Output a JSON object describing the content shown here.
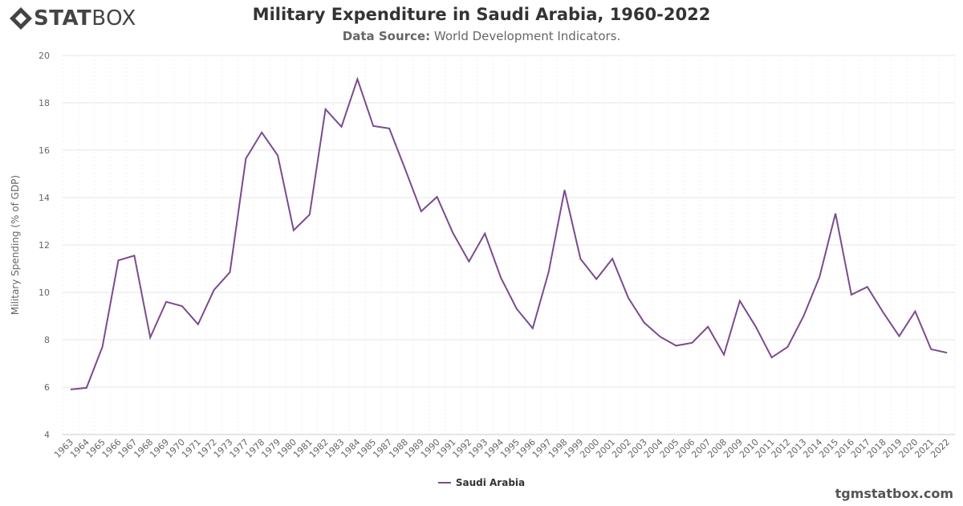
{
  "logo": {
    "text_bold": "STAT",
    "text_light": "BOX"
  },
  "header": {
    "title": "Military Expenditure in Saudi Arabia, 1960-2022",
    "source_label": "Data Source:",
    "source_value": "World Development Indicators."
  },
  "watermark": "tgmstatbox.com",
  "colors": {
    "series": "#7b4b8e",
    "grid": "#e6e6e6",
    "axis_text": "#666666"
  },
  "chart_data": {
    "type": "line",
    "title": "Military Expenditure in Saudi Arabia, 1960-2022",
    "xlabel": "",
    "ylabel": "Military Spending (% of GDP)",
    "ylim": [
      4,
      20
    ],
    "yticks": [
      4,
      6,
      8,
      10,
      12,
      14,
      16,
      18,
      20
    ],
    "grid": true,
    "legend": "bottom-center",
    "categories": [
      "1963",
      "1964",
      "1965",
      "1966",
      "1967",
      "1968",
      "1969",
      "1970",
      "1971",
      "1972",
      "1973",
      "1977",
      "1978",
      "1979",
      "1980",
      "1981",
      "1982",
      "1983",
      "1984",
      "1985",
      "1987",
      "1988",
      "1989",
      "1990",
      "1991",
      "1992",
      "1993",
      "1994",
      "1995",
      "1996",
      "1997",
      "1998",
      "1999",
      "2000",
      "2001",
      "2002",
      "2003",
      "2004",
      "2005",
      "2006",
      "2007",
      "2008",
      "2009",
      "2010",
      "2011",
      "2012",
      "2013",
      "2014",
      "2015",
      "2016",
      "2017",
      "2018",
      "2019",
      "2020",
      "2021",
      "2022"
    ],
    "series": [
      {
        "name": "Saudi Arabia",
        "values": [
          5.9,
          5.97,
          7.7,
          11.35,
          11.55,
          8.1,
          9.6,
          9.42,
          8.65,
          10.1,
          10.85,
          15.65,
          16.75,
          15.78,
          12.62,
          13.28,
          17.73,
          16.99,
          19.0,
          17.02,
          16.92,
          15.2,
          13.42,
          14.03,
          12.5,
          11.3,
          12.48,
          10.62,
          9.3,
          8.48,
          10.85,
          14.32,
          11.41,
          10.56,
          11.42,
          9.77,
          8.72,
          8.13,
          7.75,
          7.87,
          8.55,
          7.37,
          9.64,
          8.55,
          7.25,
          7.7,
          9.0,
          10.65,
          13.33,
          9.9,
          10.23,
          9.15,
          8.15,
          9.2,
          7.6,
          7.45
        ]
      }
    ]
  }
}
